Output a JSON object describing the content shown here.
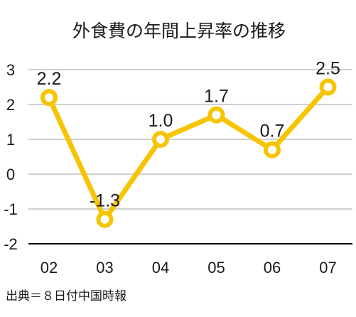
{
  "title": "外食費の年間上昇率の推移",
  "source": "出典＝８日付中国時報",
  "colors": {
    "series": "#f7c400",
    "marker_fill": "#ffffff",
    "grid": "#b3b3b3",
    "baseline": "#000000",
    "text": "#1a1a1a"
  },
  "chart_data": {
    "type": "line",
    "title": "外食費の年間上昇率の推移",
    "x": [
      "02",
      "03",
      "04",
      "05",
      "06",
      "07"
    ],
    "y": [
      2.2,
      -1.3,
      1.0,
      1.7,
      0.7,
      2.5
    ],
    "data_labels": [
      "2.2",
      "-1.3",
      "1.0",
      "1.7",
      "0.7",
      "2.5"
    ],
    "yticks": [
      3,
      2,
      1,
      0,
      -1,
      -2
    ],
    "ytick_labels": [
      "3",
      "2",
      "1",
      "0",
      "-1",
      "-2"
    ],
    "ylim": [
      -2,
      3
    ],
    "xlabel": "",
    "ylabel": "",
    "grid": true,
    "legend": "none"
  }
}
